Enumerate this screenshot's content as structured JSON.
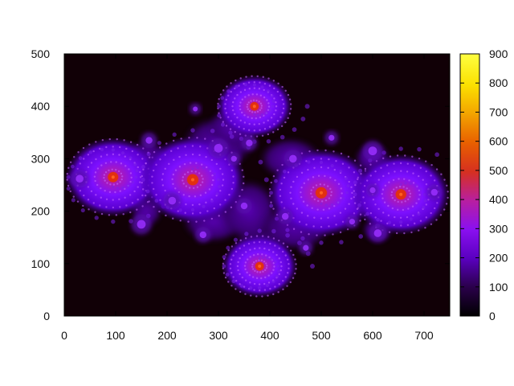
{
  "chart_data": {
    "type": "heatmap",
    "title": "",
    "xlabel": "",
    "ylabel": "",
    "xlim": [
      0,
      750
    ],
    "ylim": [
      0,
      500
    ],
    "x_ticks": [
      0,
      100,
      200,
      300,
      400,
      500,
      600,
      700
    ],
    "y_ticks": [
      0,
      100,
      200,
      300,
      400,
      500
    ],
    "colorbar": {
      "range": [
        0,
        900
      ],
      "ticks": [
        0,
        100,
        200,
        300,
        400,
        500,
        600,
        700,
        800,
        900
      ],
      "palette": "gnuplot",
      "stops": [
        "#000000",
        "#2a004a",
        "#5a00c0",
        "#8a10f0",
        "#b81fa0",
        "#d63020",
        "#e85f00",
        "#f3a300",
        "#fbe000",
        "#ffff40"
      ]
    },
    "grid": false,
    "legend": "none",
    "background_color": "#110006",
    "fractal": {
      "kind": "julia-set",
      "centers": [
        {
          "x": 95,
          "y": 265,
          "value": 380
        },
        {
          "x": 250,
          "y": 260,
          "value": 470
        },
        {
          "x": 370,
          "y": 400,
          "value": 210
        },
        {
          "x": 380,
          "y": 95,
          "value": 210
        },
        {
          "x": 500,
          "y": 235,
          "value": 480
        },
        {
          "x": 655,
          "y": 232,
          "value": 400
        }
      ]
    }
  }
}
